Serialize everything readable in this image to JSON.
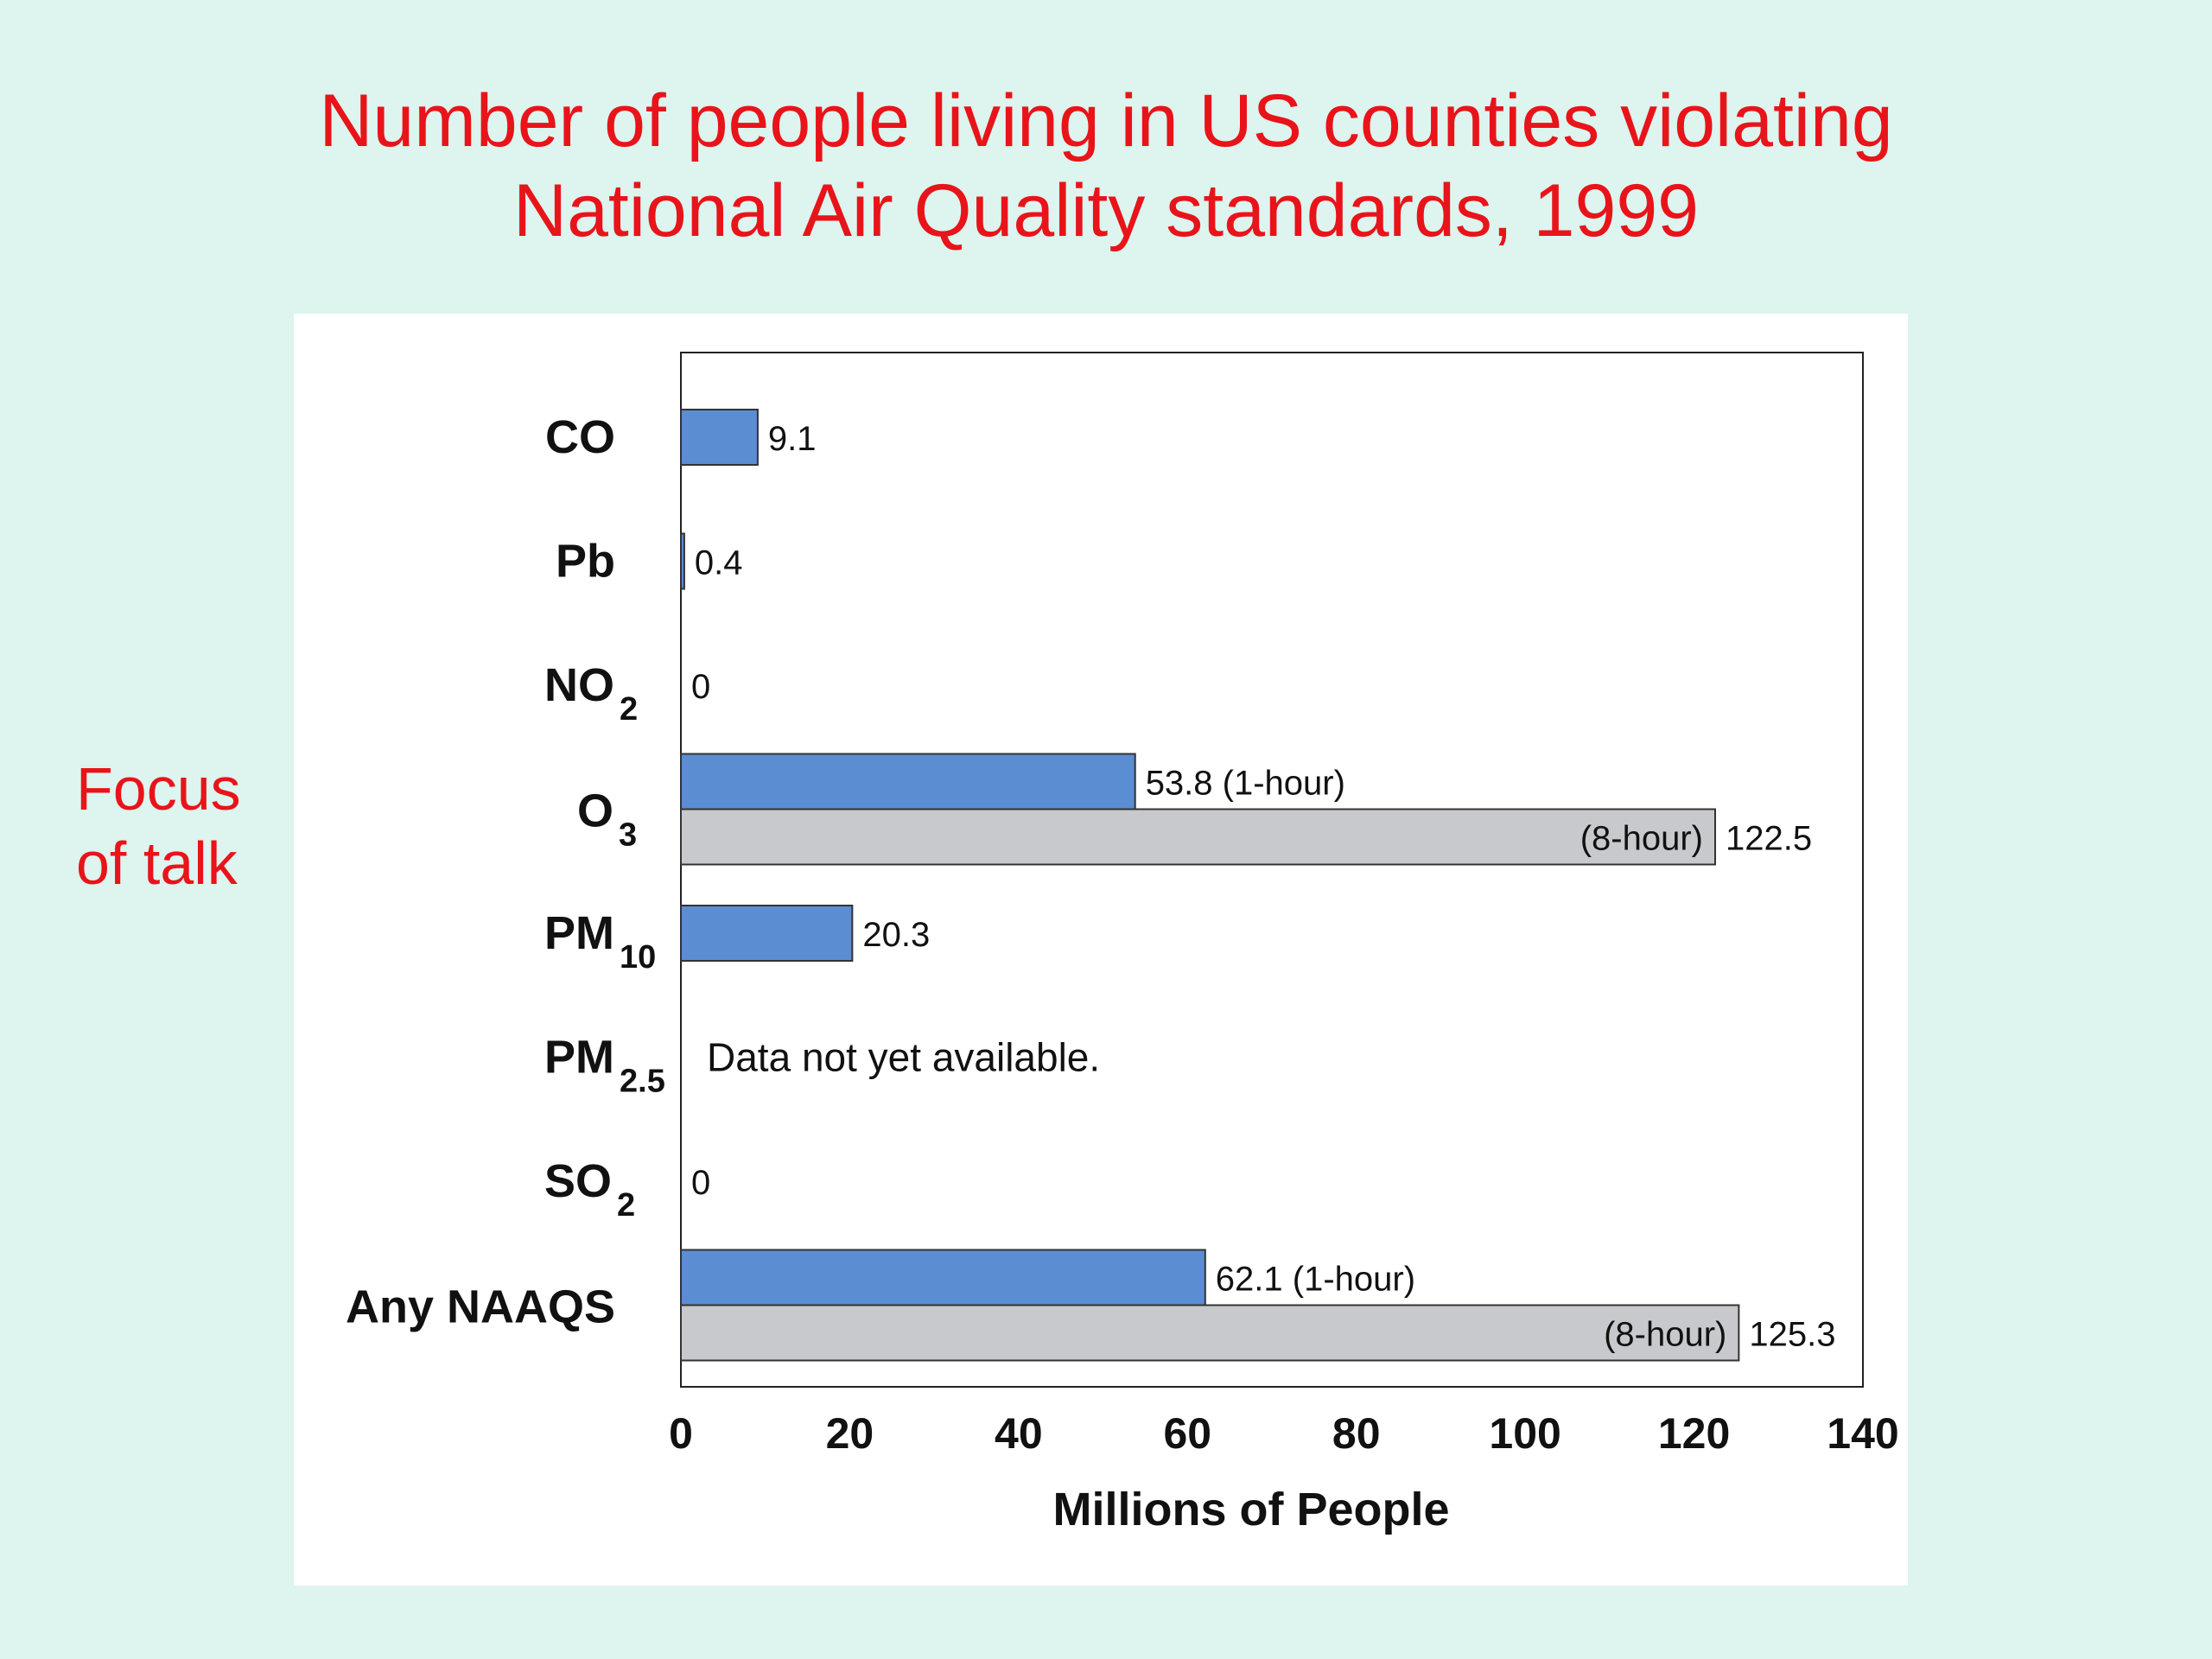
{
  "slide": {
    "title_line1": "Number of people living in US counties violating",
    "title_line2": "National Air Quality standards, 1999",
    "focus_line1": "Focus",
    "focus_line2": "of talk",
    "colors": {
      "background": "#ddf4ef",
      "title": "#e8141a",
      "bar_1hour": "#5b8dd3",
      "bar_8hour": "#c8c9cc"
    }
  },
  "chart_data": {
    "type": "bar",
    "orientation": "horizontal",
    "title": "",
    "xlabel": "Millions of People",
    "ylabel": "",
    "xlim": [
      0,
      140
    ],
    "x_ticks": [
      "0",
      "20",
      "40",
      "60",
      "80",
      "100",
      "120",
      "140"
    ],
    "grid": false,
    "legend": "none",
    "categories": [
      {
        "name": "CO",
        "sub": "",
        "bars": [
          {
            "value": 9.1,
            "label": "9.1",
            "kind": "blue"
          }
        ]
      },
      {
        "name": "Pb",
        "sub": "",
        "bars": [
          {
            "value": 0.4,
            "label": "0.4",
            "kind": "blue"
          }
        ]
      },
      {
        "name": "NO",
        "sub": "2",
        "bars": [
          {
            "value": 0,
            "label": "0",
            "kind": "blue"
          }
        ]
      },
      {
        "name": "O",
        "sub": "3",
        "bars": [
          {
            "value": 53.8,
            "label": "53.8  (1-hour)",
            "kind": "blue"
          },
          {
            "value": 122.5,
            "label": "122.5",
            "inner_label": "(8-hour)",
            "kind": "gray"
          }
        ]
      },
      {
        "name": "PM",
        "sub": "10",
        "bars": [
          {
            "value": 20.3,
            "label": "20.3",
            "kind": "blue"
          }
        ]
      },
      {
        "name": "PM",
        "sub": "2.5",
        "note": "Data not yet available.",
        "bars": []
      },
      {
        "name": "SO",
        "sub": "2",
        "bars": [
          {
            "value": 0,
            "label": "0",
            "kind": "blue"
          }
        ]
      },
      {
        "name": "Any NAAQS",
        "sub": "",
        "bars": [
          {
            "value": 62.1,
            "label": "62.1  (1-hour)",
            "kind": "blue"
          },
          {
            "value": 125.3,
            "label": "125.3",
            "inner_label": "(8-hour)",
            "kind": "gray"
          }
        ]
      }
    ]
  }
}
